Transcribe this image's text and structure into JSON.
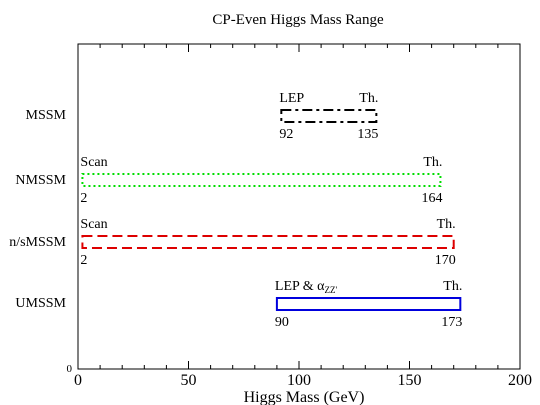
{
  "chart_data": {
    "type": "range",
    "title": "CP-Even Higgs Mass Range",
    "xlabel": "Higgs Mass (GeV)",
    "ylabel": "",
    "xlim": [
      0,
      200
    ],
    "x_ticks": [
      "0",
      "50",
      "100",
      "150",
      "200"
    ],
    "y_zero_label": "0",
    "grid": false,
    "series": [
      {
        "name": "MSSM",
        "low": 92,
        "high": 135,
        "low_label": "92",
        "high_label": "135",
        "low_source": "LEP",
        "high_source": "Th.",
        "color": "#000000",
        "style": "dash-dot"
      },
      {
        "name": "NMSSM",
        "low": 2,
        "high": 164,
        "low_label": "2",
        "high_label": "164",
        "low_source": "Scan",
        "high_source": "Th.",
        "color": "#00dd00",
        "style": "dotted"
      },
      {
        "name": "n/sMSSM",
        "low": 2,
        "high": 170,
        "low_label": "2",
        "high_label": "170",
        "low_source": "Scan",
        "high_source": "Th.",
        "color": "#dd0000",
        "style": "dashed"
      },
      {
        "name": "UMSSM",
        "low": 90,
        "high": 173,
        "low_label": "90",
        "high_label": "173",
        "low_source": "LEP & α",
        "low_source_sub": "ZZ'",
        "high_source": "Th.",
        "color": "#0000dd",
        "style": "solid"
      }
    ]
  }
}
